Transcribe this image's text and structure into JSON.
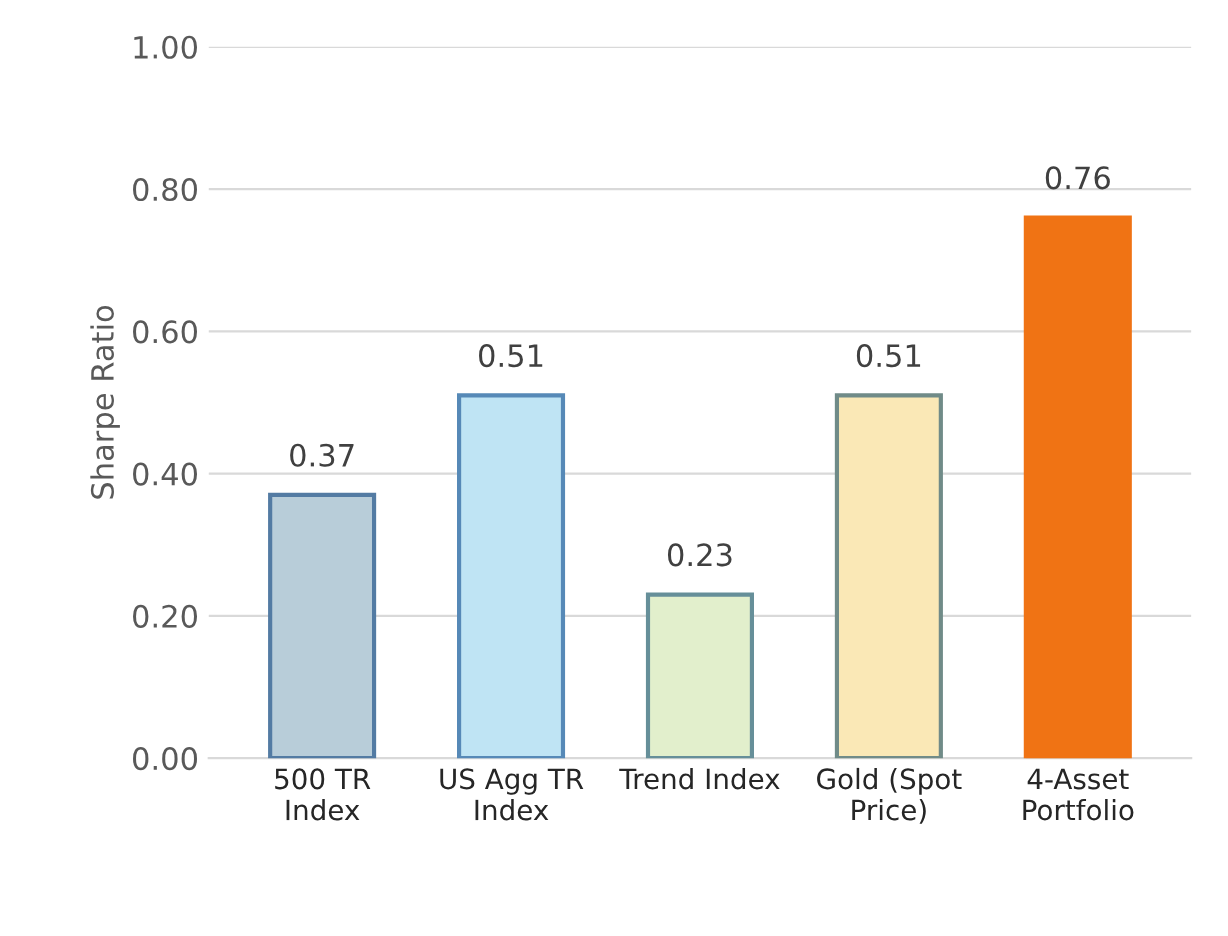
{
  "chart_data": {
    "type": "bar",
    "ylabel": "Sharpe Ratio",
    "categories": [
      "500 TR Index",
      "US Agg TR Index",
      "Trend Index",
      "Gold (Spot Price)",
      "4-Asset Portfolio"
    ],
    "values": [
      0.37,
      0.51,
      0.23,
      0.51,
      0.76
    ],
    "colors": [
      "#b8cdd9",
      "#bfe4f4",
      "#e2efcc",
      "#fae8b6",
      "#f07314"
    ],
    "ylim": [
      0,
      1
    ],
    "yticks": [
      {
        "value": 0,
        "label": "0.00"
      },
      {
        "value": 0.2,
        "label": "0.20"
      },
      {
        "value": 0.4,
        "label": "0.40"
      },
      {
        "value": 0.6,
        "label": "0.60"
      },
      {
        "value": 0.8,
        "label": "0.80"
      },
      {
        "value": 1,
        "label": "1.00"
      }
    ],
    "grid": "y",
    "data_labels": true
  }
}
